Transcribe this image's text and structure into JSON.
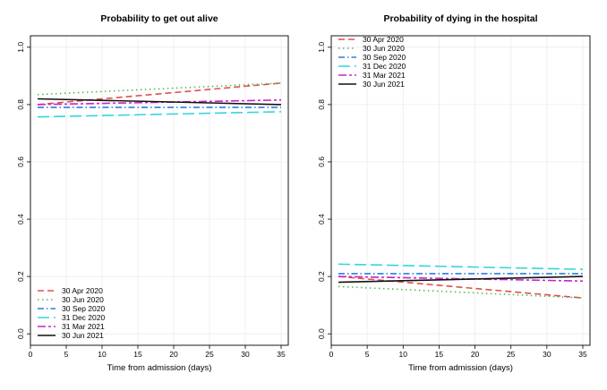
{
  "chart_data": [
    {
      "type": "line",
      "title": "Probability to get out alive",
      "xlabel": "Time from admission (days)",
      "ylabel": "",
      "xlim": [
        0,
        36
      ],
      "ylim": [
        -0.04,
        1.04
      ],
      "x_ticks": [
        0,
        5,
        10,
        15,
        20,
        25,
        30,
        35
      ],
      "y_ticks": [
        0.0,
        0.2,
        0.4,
        0.6,
        0.8,
        1.0
      ],
      "grid": true,
      "legend_position": "bottom-left",
      "series": [
        {
          "name": "30 Apr 2020",
          "color": "#e0504f",
          "dash": "dashed",
          "x": [
            1,
            35
          ],
          "y": [
            0.8,
            0.875
          ]
        },
        {
          "name": "30 Jun 2020",
          "color": "#5ab45a",
          "dash": "dotted",
          "x": [
            1,
            35
          ],
          "y": [
            0.835,
            0.875
          ]
        },
        {
          "name": "30 Sep 2020",
          "color": "#2a7de1",
          "dash": "dashdot",
          "x": [
            1,
            35
          ],
          "y": [
            0.79,
            0.79
          ]
        },
        {
          "name": "31 Dec 2020",
          "color": "#33d6dc",
          "dash": "longdash",
          "x": [
            1,
            35
          ],
          "y": [
            0.757,
            0.775
          ]
        },
        {
          "name": "31 Mar 2021",
          "color": "#cc22cc",
          "dash": "twodash",
          "x": [
            1,
            35
          ],
          "y": [
            0.8,
            0.816
          ]
        },
        {
          "name": "30 Jun 2021",
          "color": "#111111",
          "dash": "solid",
          "x": [
            1,
            35
          ],
          "y": [
            0.82,
            0.8
          ]
        }
      ]
    },
    {
      "type": "line",
      "title": "Probability of dying in the hospital",
      "xlabel": "Time from admission (days)",
      "ylabel": "",
      "xlim": [
        0,
        36
      ],
      "ylim": [
        -0.04,
        1.04
      ],
      "x_ticks": [
        0,
        5,
        10,
        15,
        20,
        25,
        30,
        35
      ],
      "y_ticks": [
        0.0,
        0.2,
        0.4,
        0.6,
        0.8,
        1.0
      ],
      "grid": true,
      "legend_position": "top-left",
      "series": [
        {
          "name": "30 Apr 2020",
          "color": "#e0504f",
          "dash": "dashed",
          "x": [
            1,
            35
          ],
          "y": [
            0.2,
            0.125
          ]
        },
        {
          "name": "30 Jun 2020",
          "color": "#5ab45a",
          "dash": "dotted",
          "x": [
            1,
            35
          ],
          "y": [
            0.165,
            0.125
          ]
        },
        {
          "name": "30 Sep 2020",
          "color": "#2a7de1",
          "dash": "dashdot",
          "x": [
            1,
            35
          ],
          "y": [
            0.21,
            0.21
          ]
        },
        {
          "name": "31 Dec 2020",
          "color": "#33d6dc",
          "dash": "longdash",
          "x": [
            1,
            35
          ],
          "y": [
            0.243,
            0.225
          ]
        },
        {
          "name": "31 Mar 2021",
          "color": "#cc22cc",
          "dash": "twodash",
          "x": [
            1,
            35
          ],
          "y": [
            0.2,
            0.184
          ]
        },
        {
          "name": "30 Jun 2021",
          "color": "#111111",
          "dash": "solid",
          "x": [
            1,
            35
          ],
          "y": [
            0.18,
            0.2
          ]
        }
      ]
    }
  ]
}
